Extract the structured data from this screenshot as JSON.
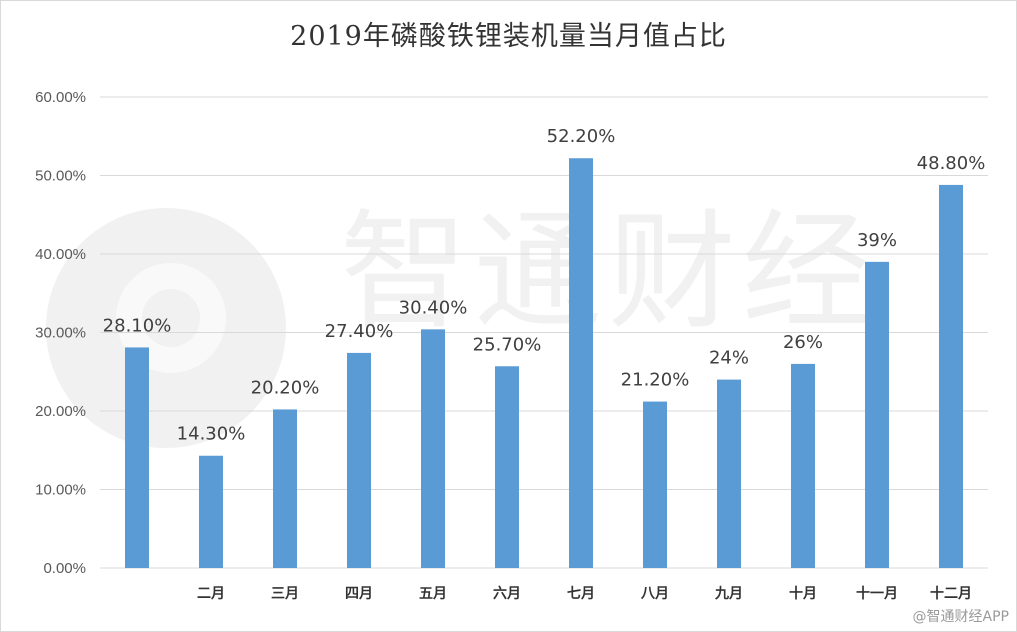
{
  "watermark": {
    "large_text": "智通财经",
    "footer_text": "@智通财经APP"
  },
  "colors": {
    "bar": "#5b9bd5",
    "grid": "#d9d9d9",
    "axis_text": "#595959",
    "label_text": "#404040"
  },
  "chart_data": {
    "type": "bar",
    "title": "2019年磷酸铁锂装机量当月值占比",
    "xlabel": "",
    "ylabel": "",
    "categories": [
      "",
      "二月",
      "三月",
      "四月",
      "五月",
      "六月",
      "七月",
      "八月",
      "九月",
      "十月",
      "十一月",
      "十二月"
    ],
    "values": [
      28.1,
      14.3,
      20.2,
      27.4,
      30.4,
      25.7,
      52.2,
      21.2,
      24,
      26,
      39,
      48.8
    ],
    "data_labels": [
      "28.10%",
      "14.30%",
      "20.20%",
      "27.40%",
      "30.40%",
      "25.70%",
      "52.20%",
      "21.20%",
      "24%",
      "26%",
      "39%",
      "48.80%"
    ],
    "ylim": [
      0,
      60
    ],
    "yticks": [
      "0.00%",
      "10.00%",
      "20.00%",
      "30.00%",
      "40.00%",
      "50.00%",
      "60.00%"
    ],
    "grid": true,
    "legend": "none"
  }
}
